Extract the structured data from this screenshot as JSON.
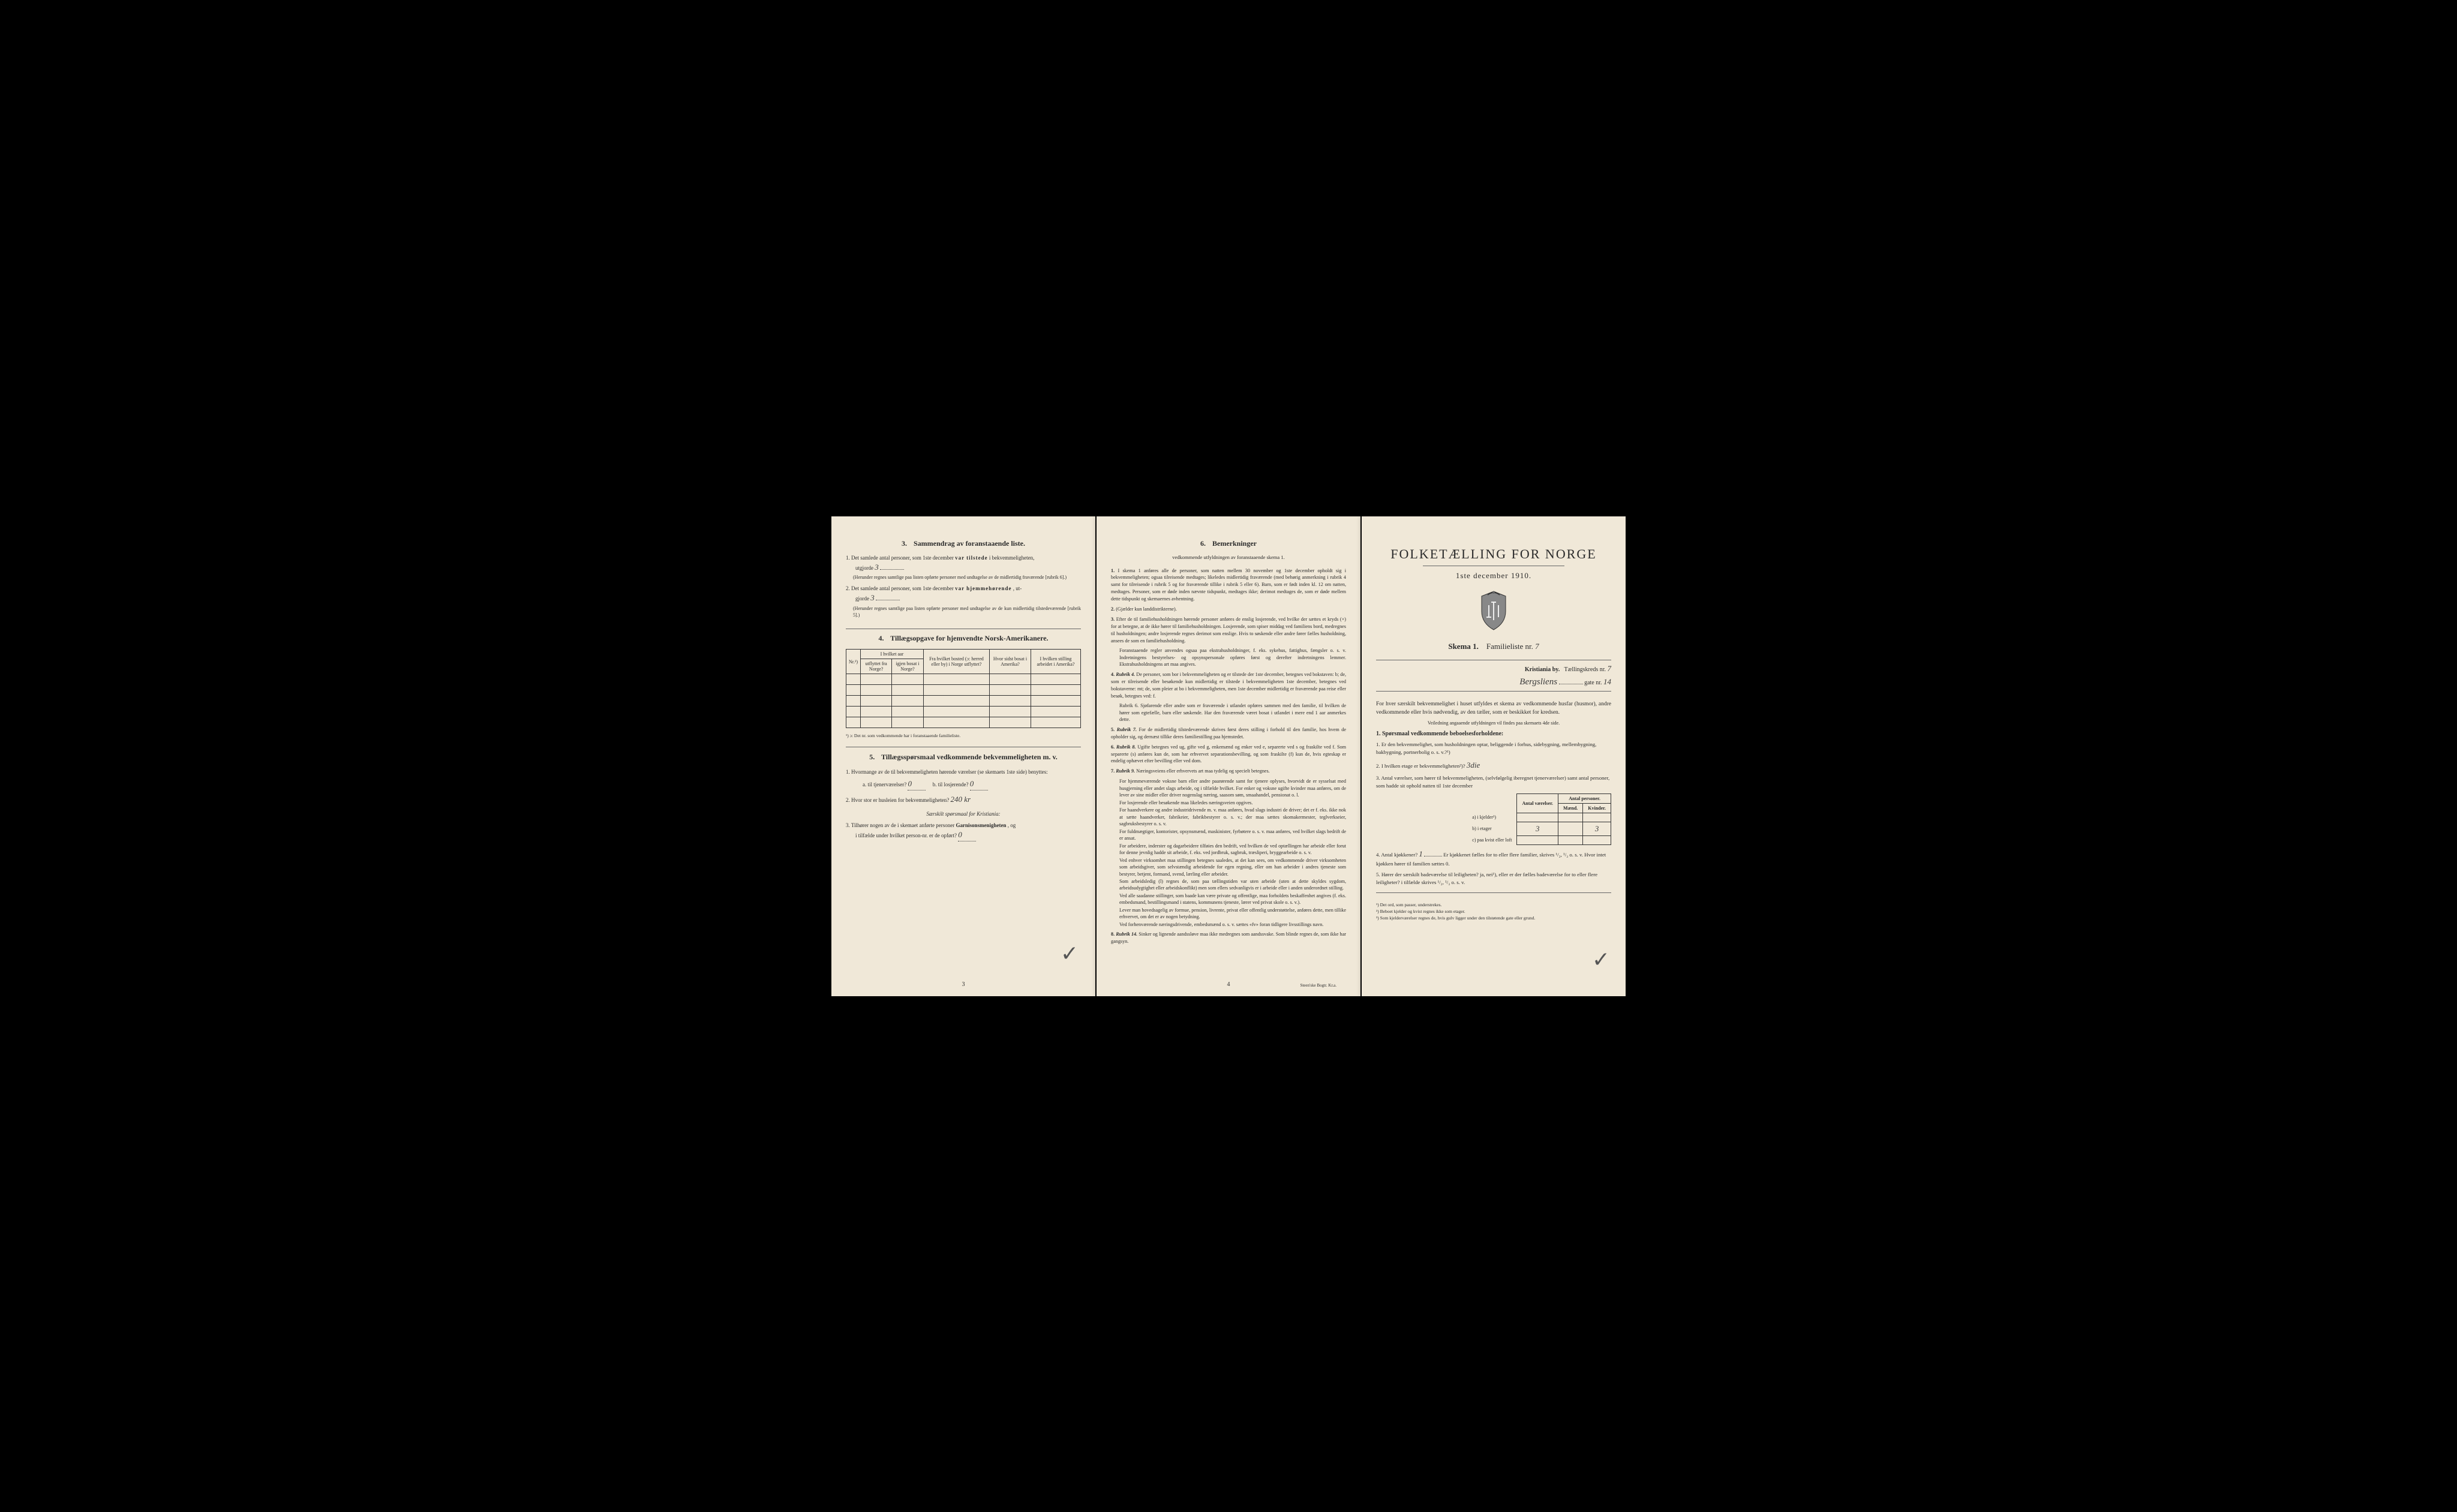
{
  "page3": {
    "section3": {
      "num": "3.",
      "title": "Sammendrag av foranstaaende liste.",
      "item1": {
        "num": "1.",
        "text_a": "Det samlede antal personer, som 1ste december",
        "text_b": "var tilstede",
        "text_c": "i bekvemmeligheten,",
        "text_d": "utgjorde",
        "value": "3",
        "note": "(Herunder regnes samtlige paa listen opførte personer med undtagelse av de midlertidig fraværende [rubrik 6].)"
      },
      "item2": {
        "num": "2.",
        "text_a": "Det samlede antal personer, som 1ste december",
        "text_b": "var hjemmehørende",
        "text_c": ", ut-",
        "text_d": "gjorde",
        "value": "3",
        "note": "(Herunder regnes samtlige paa listen opførte personer med undtagelse av de kun midlertidig tilstedeværende [rubrik 5].)"
      }
    },
    "section4": {
      "num": "4.",
      "title": "Tillægsopgave for hjemvendte Norsk-Amerikanere.",
      "headers": {
        "nr": "Nr.¹)",
        "hvilket_aar": "I hvilket aar",
        "utflyttet": "utflyttet fra Norge?",
        "igjen": "igjen bosat i Norge?",
        "bosted": "Fra hvilket bosted (ɔ: herred eller by) i Norge utflyttet?",
        "sidst": "Hvor sidst bosat i Amerika?",
        "stilling": "I hvilken stilling arbeidet i Amerika?"
      },
      "note": "¹) ɔ: Det nr. som vedkommende har i foranstaaende familieliste."
    },
    "section5": {
      "num": "5.",
      "title": "Tillægsspørsmaal vedkommende bekvemmeligheten m. v.",
      "item1": {
        "num": "1.",
        "text": "Hvormange av de til bekvemmeligheten hørende værelser (se skemaets 1ste side) benyttes:",
        "a_label": "a. til tjenerværelser?",
        "a_value": "0",
        "b_label": "b. til losjerende?",
        "b_value": "0"
      },
      "item2": {
        "num": "2.",
        "text": "Hvor stor er husleien for bekvemmeligheten?",
        "value": "240 kr"
      },
      "sub_heading": "Særskilt spørsmaal for Kristiania:",
      "item3": {
        "num": "3.",
        "text_a": "Tilhører nogen av de i skemaet anførte personer",
        "text_b": "Garnisonsmenigheten",
        "text_c": ", og",
        "text_d": "i tilfælde under hvilket person-nr. er de opført?",
        "value": "0"
      }
    },
    "page_num": "3"
  },
  "page4": {
    "section6": {
      "num": "6.",
      "title": "Bemerkninger",
      "subtitle": "vedkommende utfyldningen av foranstaaende skema 1.",
      "items": [
        {
          "num": "1.",
          "text": "I skema 1 anføres alle de personer, som natten mellem 30 november og 1ste december opholdt sig i bekvemmeligheten; ogsaa tilreisende medtages; likeledes midlertidig fraværende (med behørig anmerkning i rubrik 4 samt for tilreisende i rubrik 5 og for fraværende tillike i rubrik 5 eller 6). Barn, som er født inden kl. 12 om natten, medtages. Personer, som er døde inden nævnte tidspunkt, medtages ikke; derimot medtages de, som er døde mellem dette tidspunkt og skemaernes avhentning."
        },
        {
          "num": "2.",
          "text": "(Gjælder kun landdistrikterne)."
        },
        {
          "num": "3.",
          "text": "Efter de til familiehusholdningen hørende personer anføres de enslig losjerende, ved hvilke der sættes et kryds (×) for at betegne, at de ikke hører til familiehusholdningen. Losjerende, som spiser middag ved familiens bord, medregnes til husholdningen; andre losjerende regnes derimot som enslige. Hvis to søskende eller andre fører fælles husholdning, ansees de som en familiehusholdning.",
          "extra": "Foranstaaende regler anvendes ogsaa paa ekstrahusholdninger, f. eks. sykehus, fattighus, fængsler o. s. v. Indretningens bestyrelses- og opsynspersonale opføres først og derefter indretningens lemmer. Ekstrahusholdningens art maa angives."
        },
        {
          "num": "4.",
          "lead": "Rubrik 4.",
          "text": "De personer, som bor i bekvemmeligheten og er tilstede der 1ste december, betegnes ved bokstaven: b; de, som er tilreisende eller besøkende kun midlertidig er tilstede i bekvemmeligheten 1ste december, betegnes ved bokstaverne: mt; de, som pleier at bo i bekvemmeligheten, men 1ste december midlertidig er fraværende paa reise eller besøk, betegnes ved: f.",
          "extra": "Rubrik 6. Sjøfarende eller andre som er fraværende i utlandet opføres sammen med den familie, til hvilken de hører som egtefælle, barn eller søskende. Har den fraværende været bosat i utlandet i mere end 1 aar anmerkes dette."
        },
        {
          "num": "5.",
          "lead": "Rubrik 7.",
          "text": "For de midlertidig tilstedeværende skrives først deres stilling i forhold til den familie, hos hvem de opholder sig, og dernæst tillike deres familiestilling paa hjemstedet."
        },
        {
          "num": "6.",
          "lead": "Rubrik 8.",
          "text": "Ugifte betegnes ved ug, gifte ved g, enkemænd og enker ved e, separerte ved s og fraskilte ved f. Som separerte (s) anføres kun de, som har erhvervet separationsbevilling, og som fraskilte (f) kun de, hvis egteskap er endelig ophævet efter bevilling eller ved dom."
        },
        {
          "num": "7.",
          "lead": "Rubrik 9.",
          "text": "Næringsveiens eller erhvervets art maa tydelig og specielt betegnes.",
          "paras": [
            "For hjemmeværende voksne barn eller andre paarørende samt for tjenere oplyses, hvorvidt de er sysselsat med husgjerning eller andet slags arbeide, og i tilfælde hvilket. For enker og voksne ugifte kvinder maa anføres, om de lever av sine midler eller driver nogenslag næring, saasom søm, smaahandel, pensionat o. l.",
            "For losjerende eller besøkende maa likeledes næringsveien opgives.",
            "For haandverkere og andre industridrivende m. v. maa anføres, hvad slags industri de driver; det er f. eks. ikke nok at sætte haandverker, fabrikeier, fabrikbestyrer o. s. v.; der maa sættes skomakermester, teglverkseier, sagbruksbestyrer o. s. v.",
            "For fuldmægtiger, kontorister, opsynsmænd, maskinister, fyrbøtere o. s. v. maa anføres, ved hvilket slags bedrift de er ansat.",
            "For arbeidere, inderster og dagarbeidere tilføies den bedrift, ved hvilken de ved optællingen har arbeide eller forut for denne jevnlig hadde sit arbeide, f. eks. ved jordbruk, sagbruk, træsliperi, bryggearbeide o. s. v.",
            "Ved enhver virksomhet maa stillingen betegnes saaledes, at det kan sees, om vedkommende driver virksomheten som arbeidsgiver, som selvstændig arbeidende for egen regning, eller om han arbeider i andres tjeneste som bestyrer, betjent, formand, svend, lærling eller arbeider.",
            "Som arbeidsledig (l) regnes de, som paa tællingstiden var uten arbeide (uten at dette skyldes sygdom, arbeidsudygtighet eller arbeidskonflikt) men som ellers sedvanligvis er i arbeide eller i anden underordnet stilling.",
            "Ved alle saadanne stillinger, som baade kan være private og offentlige, maa forholdets beskaffenhet angives (f. eks. embedsmand, bestillingsmand i statens, kommunens tjeneste, lærer ved privat skole o. s. v.).",
            "Lever man hovedsagelig av formue, pension, livrente, privat eller offentlig understøttelse, anføres dette, men tillike erhvervet, om det er av nogen betydning.",
            "Ved forhenværende næringsdrivende, embedsmænd o. s. v. sættes «fv» foran tidligere livsstillings navn."
          ]
        },
        {
          "num": "8.",
          "lead": "Rubrik 14.",
          "text": "Sinker og lignende aandssløve maa ikke medregnes som aandssvake. Som blinde regnes de, som ikke har gangsyn."
        }
      ]
    },
    "page_num": "4",
    "printer": "Steen'ske Bogtr. Kr.a."
  },
  "title_page": {
    "main_title": "FOLKETÆLLING FOR NORGE",
    "date": "1ste december 1910.",
    "skema_label": "Skema 1.",
    "familie_label": "Familieliste nr.",
    "familie_nr": "7",
    "city": "Kristiania by.",
    "kreds_label": "Tællingskreds nr.",
    "kreds_nr": "7",
    "gate_name": "Bergsliens",
    "gate_label": "gate nr.",
    "gate_nr": "14",
    "intro": "For hver særskilt bekvemmelighet i huset utfyldes et skema av vedkommende husfar (husmor), andre vedkommende eller hvis nødvendig, av den tæller, som er beskikket for kredsen.",
    "small_note": "Veiledning angaaende utfyldningen vil findes paa skemaets 4de side.",
    "q_heading": "1. Spørsmaal vedkommende beboelsesforholdene:",
    "q1": {
      "num": "1.",
      "text": "Er den bekvemmelighet, som husholdningen optar, beliggende i forhus, sidebygning, mellembygning, bakbygning, portnerbolig o. s. v.?¹)"
    },
    "q2": {
      "num": "2.",
      "text": "I hvilken etage er bekvemmeligheten²)?",
      "value": "3die"
    },
    "q3": {
      "num": "3.",
      "text": "Antal værelser, som hører til bekvemmeligheten, (selvfølgelig iberegnet tjenerværelser) samt antal personer, som hadde sit ophold natten til 1ste december"
    },
    "room_table": {
      "h1": "Antal værelser.",
      "h2": "Antal personer.",
      "h2a": "Mænd.",
      "h2b": "Kvinder.",
      "rows": [
        {
          "label": "a) i kjelder³)",
          "vaer": "",
          "m": "",
          "k": ""
        },
        {
          "label": "b) i etager",
          "vaer": "3",
          "m": "",
          "k": "3"
        },
        {
          "label": "c) paa kvist eller loft",
          "vaer": "",
          "m": "",
          "k": ""
        }
      ]
    },
    "q4": {
      "num": "4.",
      "text_a": "Antal kjøkkener?",
      "value": "1",
      "text_b": "Er kjøkkenet fælles for to eller flere familier, skrives ¹/₂, ¹/₃ o. s. v. Hvor intet kjøkken hører til familien sættes 0."
    },
    "q5": {
      "num": "5.",
      "text": "Hører der særskilt badeværelse til leiligheten? ja, nei¹), eller er der fælles badeværelse for to eller flere leiligheter? i tilfælde skrives ¹/₂, ¹/₃ o. s. v."
    },
    "footnotes": {
      "f1": "¹) Det ord, som passer, understrekes.",
      "f2": "²) Beboet kjelder og kvist regnes ikke som etager.",
      "f3": "³) Som kjelderværelser regnes de, hvis gulv ligger under den tilstøtende gate eller grund."
    }
  }
}
